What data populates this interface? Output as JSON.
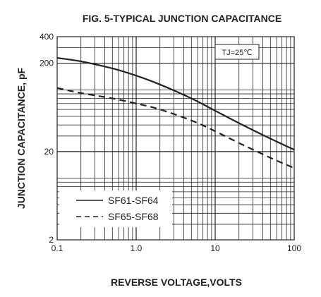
{
  "chart_data": {
    "type": "line",
    "title": "FIG. 5-TYPICAL JUNCTION CAPACITANCE",
    "xlabel": "REVERSE VOLTAGE,VOLTS",
    "ylabel": "JUNCTION CAPACITANCE, pF",
    "x_scale": "log",
    "y_scale": "log",
    "xlim": [
      0.1,
      100
    ],
    "ylim": [
      2,
      400
    ],
    "x_ticks": [
      {
        "value": 0.1,
        "label": "0.1"
      },
      {
        "value": 1,
        "label": "1.0"
      },
      {
        "value": 10,
        "label": "10"
      },
      {
        "value": 100,
        "label": "100"
      }
    ],
    "y_ticks": [
      {
        "value": 2,
        "label": "2"
      },
      {
        "value": 20,
        "label": "20"
      },
      {
        "value": 200,
        "label": "200"
      },
      {
        "value": 400,
        "label": "400"
      }
    ],
    "grid": true,
    "legend_position": "bottom-left",
    "annotation": "TJ=25℃",
    "annotation_position": "top-right",
    "series": [
      {
        "name": "SF61-SF64",
        "style": "solid",
        "x": [
          0.1,
          0.2,
          0.5,
          1,
          2,
          5,
          10,
          20,
          50,
          100
        ],
        "y": [
          230,
          210,
          175,
          145,
          115,
          80,
          58,
          42,
          28,
          21
        ]
      },
      {
        "name": "SF65-SF68",
        "style": "dashed",
        "x": [
          0.1,
          0.2,
          0.5,
          1,
          2,
          5,
          10,
          20,
          50,
          100
        ],
        "y": [
          105,
          92,
          80,
          70,
          60,
          45,
          34,
          25,
          17,
          13
        ]
      }
    ]
  }
}
